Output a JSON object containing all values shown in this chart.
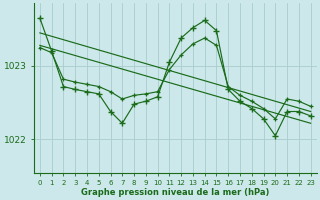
{
  "title": "Graphe pression niveau de la mer (hPa)",
  "background_color": "#cce8ea",
  "grid_color": "#aacccc",
  "line_color": "#1a6b1a",
  "xlim": [
    -0.5,
    23.5
  ],
  "ylim": [
    1021.55,
    1023.85
  ],
  "yticks": [
    1022,
    1023
  ],
  "xticks": [
    0,
    1,
    2,
    3,
    4,
    5,
    6,
    7,
    8,
    9,
    10,
    11,
    12,
    13,
    14,
    15,
    16,
    17,
    18,
    19,
    20,
    21,
    22,
    23
  ],
  "hours": [
    0,
    1,
    2,
    3,
    4,
    5,
    6,
    7,
    8,
    9,
    10,
    11,
    12,
    13,
    14,
    15,
    16,
    17,
    18,
    19,
    20,
    21,
    22,
    23
  ],
  "line_main": [
    1023.65,
    1023.2,
    1022.72,
    1022.68,
    1022.65,
    1022.62,
    1022.38,
    1022.22,
    1022.48,
    1022.52,
    1022.58,
    1023.05,
    1023.38,
    1023.52,
    1023.62,
    1023.48,
    1022.68,
    1022.52,
    1022.42,
    1022.28,
    1022.05,
    1022.38,
    1022.38,
    1022.32
  ],
  "line_smooth_x": [
    0,
    1,
    2,
    3,
    4,
    5,
    6,
    7,
    8,
    9,
    10,
    11,
    12,
    13,
    14,
    15,
    16,
    17,
    18,
    19,
    20,
    21,
    22,
    23
  ],
  "line_smooth": [
    1023.25,
    1023.18,
    1022.82,
    1022.78,
    1022.75,
    1022.72,
    1022.65,
    1022.55,
    1022.6,
    1022.62,
    1022.65,
    1022.95,
    1023.15,
    1023.3,
    1023.38,
    1023.28,
    1022.72,
    1022.6,
    1022.52,
    1022.42,
    1022.28,
    1022.55,
    1022.52,
    1022.45
  ],
  "trend1_x": [
    0,
    23
  ],
  "trend1_y": [
    1023.45,
    1022.38
  ],
  "trend2_x": [
    0,
    23
  ],
  "trend2_y": [
    1023.28,
    1022.22
  ]
}
